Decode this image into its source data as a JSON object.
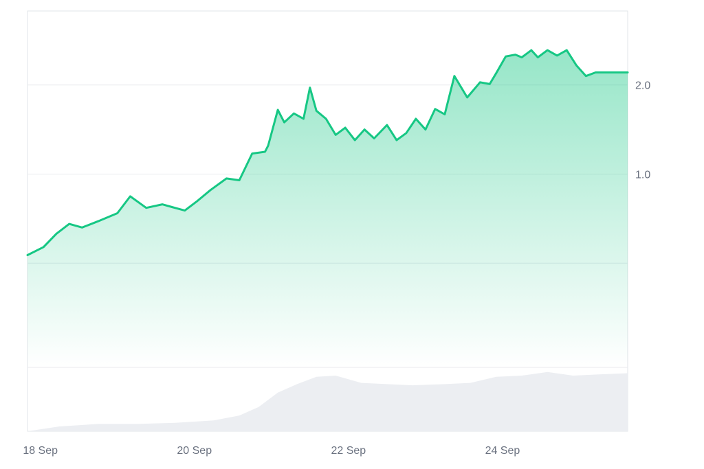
{
  "colors": {
    "line": "#16c784",
    "volume": "#eceef2",
    "grid": "#e8eaee",
    "frame": "#e2e4e8",
    "tick_text": "#6b7280"
  },
  "chart_data": [
    {
      "type": "line",
      "title": "",
      "xlabel": "",
      "ylabel": "",
      "area_fill": true,
      "grid": "horizontal",
      "y_axis_position": "right",
      "xlim": [
        "2023-09-17T20:00",
        "2023-09-25T15:00"
      ],
      "ylim": [
        -1.17,
        2.83
      ],
      "x_ticks": [
        {
          "x": "2023-09-18",
          "label": "18 Sep"
        },
        {
          "x": "2023-09-20",
          "label": "20 Sep"
        },
        {
          "x": "2023-09-22",
          "label": "22 Sep"
        },
        {
          "x": "2023-09-24",
          "label": "24 Sep"
        }
      ],
      "y_ticks": [
        {
          "y": 1.0,
          "label": "1.0"
        },
        {
          "y": 2.0,
          "label": "2.0"
        }
      ],
      "series": [
        {
          "x": [
            "2023-09-17T20:00",
            "2023-09-18T01:00",
            "2023-09-18T05:00",
            "2023-09-18T09:00",
            "2023-09-18T13:00",
            "2023-09-18T18:00",
            "2023-09-19T00:00",
            "2023-09-19T04:00",
            "2023-09-19T09:00",
            "2023-09-19T14:00",
            "2023-09-19T17:00",
            "2023-09-19T21:00",
            "2023-09-20T01:00",
            "2023-09-20T05:00",
            "2023-09-20T10:00",
            "2023-09-20T14:00",
            "2023-09-20T18:00",
            "2023-09-20T22:00",
            "2023-09-20T23:00",
            "2023-09-21T02:00",
            "2023-09-21T04:00",
            "2023-09-21T07:00",
            "2023-09-21T10:00",
            "2023-09-21T12:00",
            "2023-09-21T14:00",
            "2023-09-21T17:00",
            "2023-09-21T20:00",
            "2023-09-21T23:00",
            "2023-09-22T02:00",
            "2023-09-22T05:00",
            "2023-09-22T08:00",
            "2023-09-22T12:00",
            "2023-09-22T15:00",
            "2023-09-22T18:00",
            "2023-09-22T21:00",
            "2023-09-23T00:00",
            "2023-09-23T03:00",
            "2023-09-23T06:00",
            "2023-09-23T09:00",
            "2023-09-23T13:00",
            "2023-09-23T17:00",
            "2023-09-23T20:00",
            "2023-09-23T22:00",
            "2023-09-24T01:00",
            "2023-09-24T04:00",
            "2023-09-24T06:00",
            "2023-09-24T09:00",
            "2023-09-24T11:00",
            "2023-09-24T14:00",
            "2023-09-24T17:00",
            "2023-09-24T20:00",
            "2023-09-24T23:00",
            "2023-09-25T02:00",
            "2023-09-25T05:00",
            "2023-09-25T08:00",
            "2023-09-25T11:00",
            "2023-09-25T13:00",
            "2023-09-25T15:00"
          ],
          "values": [
            0.09,
            0.18,
            0.33,
            0.44,
            0.4,
            0.47,
            0.56,
            0.75,
            0.62,
            0.66,
            0.63,
            0.59,
            0.7,
            0.82,
            0.95,
            0.93,
            1.23,
            1.25,
            1.32,
            1.72,
            1.58,
            1.68,
            1.62,
            1.97,
            1.71,
            1.62,
            1.44,
            1.52,
            1.38,
            1.5,
            1.4,
            1.55,
            1.38,
            1.46,
            1.62,
            1.5,
            1.73,
            1.67,
            2.1,
            1.86,
            2.03,
            2.01,
            2.13,
            2.32,
            2.34,
            2.31,
            2.39,
            2.31,
            2.39,
            2.33,
            2.39,
            2.22,
            2.1,
            2.14,
            2.14,
            2.14,
            2.14,
            2.14
          ]
        }
      ]
    },
    {
      "type": "area",
      "title": "",
      "xlabel": "",
      "ylabel": "",
      "xlim": [
        "2023-09-17T20:00",
        "2023-09-25T15:00"
      ],
      "ylim": [
        0,
        100
      ],
      "series": [
        {
          "x": [
            "2023-09-17T20:00",
            "2023-09-18T06:00",
            "2023-09-18T18:00",
            "2023-09-19T06:00",
            "2023-09-19T18:00",
            "2023-09-20T06:00",
            "2023-09-20T14:00",
            "2023-09-20T20:00",
            "2023-09-21T02:00",
            "2023-09-21T08:00",
            "2023-09-21T14:00",
            "2023-09-21T20:00",
            "2023-09-22T04:00",
            "2023-09-22T12:00",
            "2023-09-22T20:00",
            "2023-09-23T06:00",
            "2023-09-23T14:00",
            "2023-09-23T22:00",
            "2023-09-24T06:00",
            "2023-09-24T14:00",
            "2023-09-24T22:00",
            "2023-09-25T06:00",
            "2023-09-25T15:00"
          ],
          "values": [
            0,
            8,
            12,
            12,
            14,
            18,
            26,
            40,
            64,
            78,
            90,
            92,
            80,
            78,
            76,
            78,
            80,
            90,
            92,
            98,
            92,
            94,
            96
          ]
        }
      ]
    }
  ]
}
